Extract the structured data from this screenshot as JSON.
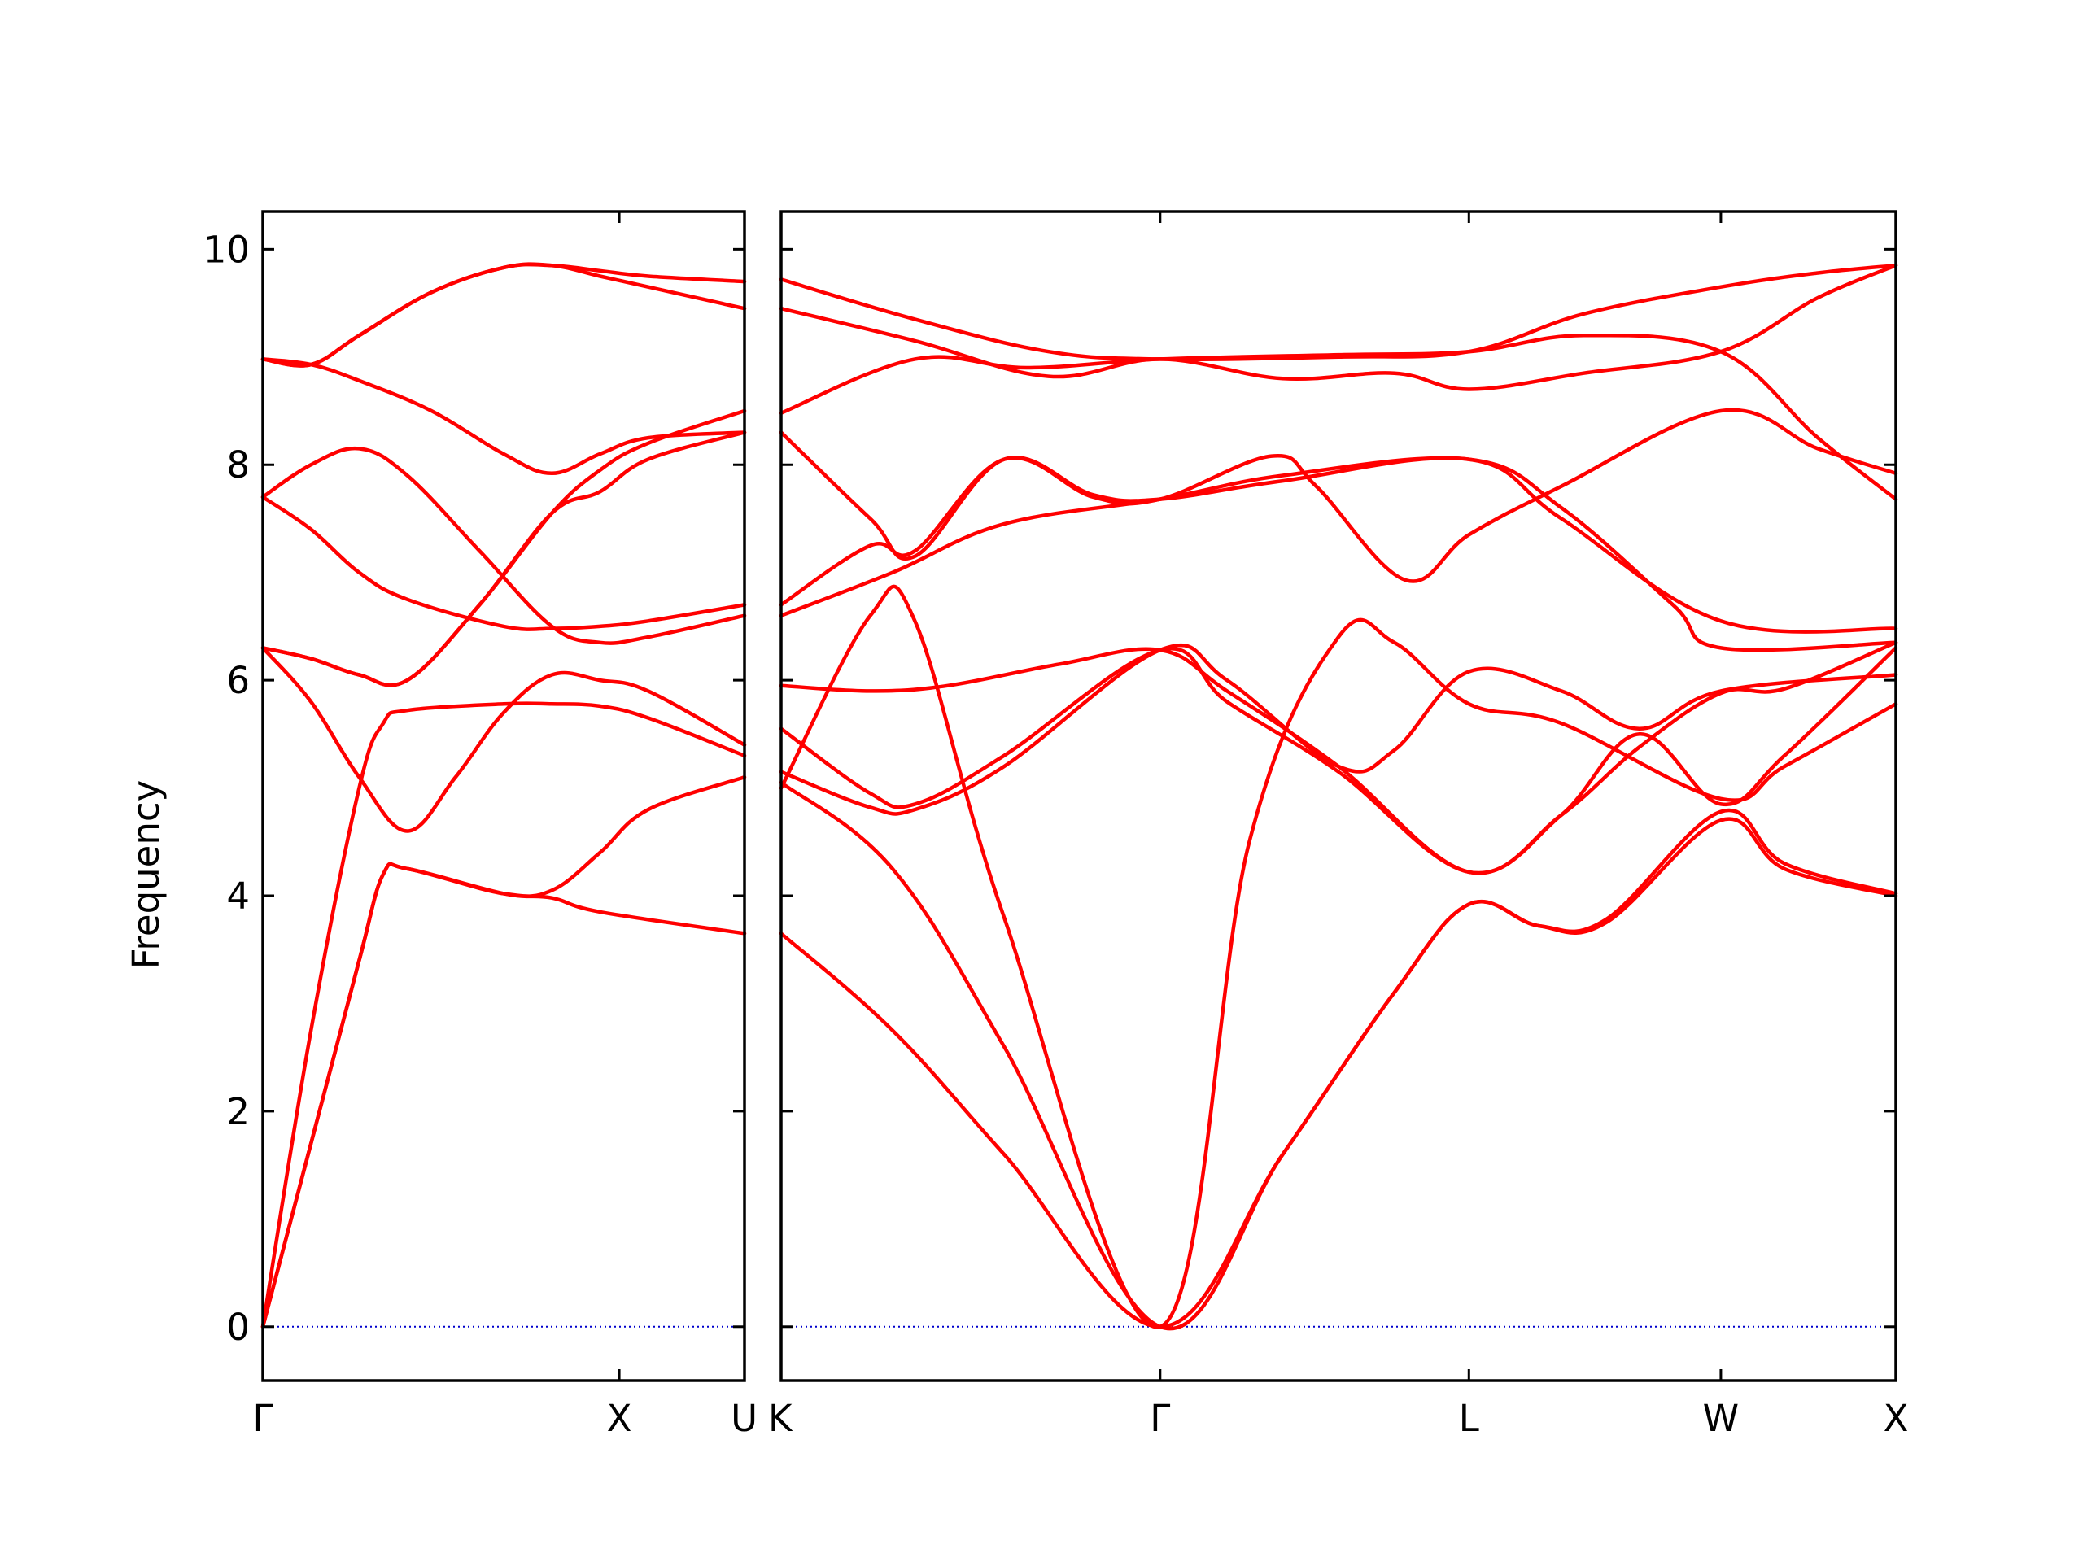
{
  "chart_data": {
    "type": "line",
    "ylabel": "Frequency",
    "ylim": [
      -0.5,
      10.35
    ],
    "yticks": [
      0,
      2,
      4,
      6,
      8,
      10
    ],
    "band_color": "#ff0000",
    "zero_line_color": "#0000cc",
    "grid": false,
    "panels": [
      {
        "x_range": [
          0,
          1.0
        ],
        "ticks": [
          {
            "x": 0,
            "label": "Γ"
          },
          {
            "x": 0.74,
            "label": "X"
          },
          {
            "x": 1.0,
            "label": "U"
          }
        ],
        "bands": [
          [
            [
              0,
              0
            ],
            [
              0.1,
              2.75
            ],
            [
              0.2,
              5.0
            ],
            [
              0.25,
              5.6
            ],
            [
              0.3,
              5.72
            ],
            [
              0.5,
              5.78
            ],
            [
              0.6,
              5.78
            ],
            [
              0.7,
              5.76
            ],
            [
              0.8,
              5.65
            ],
            [
              1.0,
              5.3
            ]
          ],
          [
            [
              0,
              0
            ],
            [
              0.1,
              1.7
            ],
            [
              0.2,
              3.4
            ],
            [
              0.25,
              4.2
            ],
            [
              0.3,
              4.25
            ],
            [
              0.5,
              4.02
            ],
            [
              0.6,
              4.05
            ],
            [
              0.7,
              4.4
            ],
            [
              0.8,
              4.8
            ],
            [
              1.0,
              5.1
            ]
          ],
          [
            [
              0,
              0
            ],
            [
              0.1,
              1.7
            ],
            [
              0.2,
              3.4
            ],
            [
              0.25,
              4.2
            ],
            [
              0.3,
              4.25
            ],
            [
              0.5,
              4.02
            ],
            [
              0.6,
              3.98
            ],
            [
              0.7,
              3.85
            ],
            [
              1.0,
              3.65
            ]
          ],
          [
            [
              0,
              6.3
            ],
            [
              0.1,
              5.8
            ],
            [
              0.2,
              5.1
            ],
            [
              0.3,
              4.6
            ],
            [
              0.4,
              5.1
            ],
            [
              0.5,
              5.7
            ],
            [
              0.6,
              6.05
            ],
            [
              0.7,
              6.0
            ],
            [
              0.8,
              5.9
            ],
            [
              1.0,
              5.4
            ]
          ],
          [
            [
              0,
              6.3
            ],
            [
              0.1,
              6.2
            ],
            [
              0.2,
              6.05
            ],
            [
              0.3,
              6.0
            ],
            [
              0.45,
              6.7
            ],
            [
              0.6,
              7.55
            ],
            [
              0.7,
              7.95
            ],
            [
              0.8,
              8.2
            ],
            [
              1.0,
              8.5
            ]
          ],
          [
            [
              0,
              6.3
            ],
            [
              0.1,
              6.2
            ],
            [
              0.2,
              6.05
            ],
            [
              0.3,
              6.0
            ],
            [
              0.45,
              6.7
            ],
            [
              0.6,
              7.55
            ],
            [
              0.7,
              7.75
            ],
            [
              0.8,
              8.05
            ],
            [
              1.0,
              8.3
            ]
          ],
          [
            [
              0,
              7.7
            ],
            [
              0.1,
              7.4
            ],
            [
              0.2,
              7.0
            ],
            [
              0.3,
              6.75
            ],
            [
              0.5,
              6.5
            ],
            [
              0.6,
              6.48
            ],
            [
              0.7,
              6.5
            ],
            [
              0.8,
              6.55
            ],
            [
              1.0,
              6.7
            ]
          ],
          [
            [
              0,
              7.7
            ],
            [
              0.1,
              8.0
            ],
            [
              0.2,
              8.15
            ],
            [
              0.3,
              7.9
            ],
            [
              0.45,
              7.2
            ],
            [
              0.6,
              6.5
            ],
            [
              0.7,
              6.35
            ],
            [
              0.8,
              6.4
            ],
            [
              1.0,
              6.6
            ]
          ],
          [
            [
              0,
              8.98
            ],
            [
              0.1,
              8.93
            ],
            [
              0.2,
              8.78
            ],
            [
              0.35,
              8.5
            ],
            [
              0.5,
              8.1
            ],
            [
              0.6,
              7.92
            ],
            [
              0.7,
              8.1
            ],
            [
              0.8,
              8.25
            ],
            [
              1.0,
              8.3
            ]
          ],
          [
            [
              0,
              8.98
            ],
            [
              0.1,
              8.93
            ],
            [
              0.2,
              9.2
            ],
            [
              0.35,
              9.6
            ],
            [
              0.5,
              9.83
            ],
            [
              0.6,
              9.85
            ],
            [
              0.7,
              9.75
            ],
            [
              0.8,
              9.65
            ],
            [
              1.0,
              9.45
            ]
          ],
          [
            [
              0,
              8.98
            ],
            [
              0.1,
              8.93
            ],
            [
              0.2,
              9.2
            ],
            [
              0.35,
              9.6
            ],
            [
              0.5,
              9.83
            ],
            [
              0.6,
              9.85
            ],
            [
              0.7,
              9.8
            ],
            [
              0.8,
              9.75
            ],
            [
              1.0,
              9.7
            ]
          ]
        ]
      },
      {
        "x_range": [
          0,
          1.0
        ],
        "ticks": [
          {
            "x": 0,
            "label": "K"
          },
          {
            "x": 0.34,
            "label": "Γ"
          },
          {
            "x": 0.617,
            "label": "L"
          },
          {
            "x": 0.843,
            "label": "W"
          },
          {
            "x": 1.0,
            "label": "X"
          }
        ],
        "bands": [
          [
            [
              0,
              3.65
            ],
            [
              0.1,
              2.75
            ],
            [
              0.2,
              1.6
            ],
            [
              0.34,
              0
            ],
            [
              0.45,
              1.6
            ],
            [
              0.55,
              3.1
            ],
            [
              0.617,
              3.92
            ],
            [
              0.68,
              3.72
            ],
            [
              0.74,
              3.75
            ],
            [
              0.843,
              4.7
            ],
            [
              0.9,
              4.25
            ],
            [
              1.0,
              4.0
            ]
          ],
          [
            [
              0,
              5.05
            ],
            [
              0.1,
              4.25
            ],
            [
              0.2,
              2.6
            ],
            [
              0.34,
              0
            ],
            [
              0.45,
              1.6
            ],
            [
              0.55,
              3.1
            ],
            [
              0.617,
              3.92
            ],
            [
              0.68,
              3.72
            ],
            [
              0.74,
              3.78
            ],
            [
              0.843,
              4.78
            ],
            [
              0.9,
              4.3
            ],
            [
              1.0,
              4.02
            ]
          ],
          [
            [
              0,
              5.0
            ],
            [
              0.08,
              6.6
            ],
            [
              0.12,
              6.55
            ],
            [
              0.2,
              3.8
            ],
            [
              0.34,
              0
            ],
            [
              0.42,
              4.5
            ],
            [
              0.5,
              6.4
            ],
            [
              0.55,
              6.35
            ],
            [
              0.617,
              5.78
            ],
            [
              0.7,
              5.6
            ],
            [
              0.843,
              4.9
            ],
            [
              0.9,
              5.2
            ],
            [
              1.0,
              5.78
            ]
          ],
          [
            [
              0,
              5.15
            ],
            [
              0.08,
              4.82
            ],
            [
              0.12,
              4.8
            ],
            [
              0.2,
              5.2
            ],
            [
              0.34,
              6.28
            ],
            [
              0.4,
              6.0
            ],
            [
              0.5,
              5.2
            ],
            [
              0.55,
              5.35
            ],
            [
              0.617,
              6.08
            ],
            [
              0.7,
              5.9
            ],
            [
              0.77,
              5.55
            ],
            [
              0.843,
              5.9
            ],
            [
              1.0,
              6.05
            ]
          ],
          [
            [
              0,
              5.55
            ],
            [
              0.08,
              4.95
            ],
            [
              0.12,
              4.85
            ],
            [
              0.2,
              5.3
            ],
            [
              0.34,
              6.28
            ],
            [
              0.4,
              5.8
            ],
            [
              0.5,
              5.15
            ],
            [
              0.617,
              4.22
            ],
            [
              0.7,
              4.75
            ],
            [
              0.77,
              5.5
            ],
            [
              0.843,
              4.85
            ],
            [
              0.9,
              5.3
            ],
            [
              1.0,
              6.3
            ]
          ],
          [
            [
              0,
              5.95
            ],
            [
              0.08,
              5.9
            ],
            [
              0.15,
              5.95
            ],
            [
              0.25,
              6.15
            ],
            [
              0.34,
              6.28
            ],
            [
              0.4,
              5.9
            ],
            [
              0.5,
              5.2
            ],
            [
              0.617,
              4.22
            ],
            [
              0.7,
              4.75
            ],
            [
              0.77,
              5.38
            ],
            [
              0.843,
              5.88
            ],
            [
              0.9,
              5.92
            ],
            [
              1.0,
              6.35
            ]
          ],
          [
            [
              0,
              6.6
            ],
            [
              0.1,
              7.0
            ],
            [
              0.2,
              7.45
            ],
            [
              0.34,
              7.68
            ],
            [
              0.45,
              7.9
            ],
            [
              0.617,
              8.05
            ],
            [
              0.7,
              7.6
            ],
            [
              0.8,
              6.7
            ],
            [
              0.843,
              6.3
            ],
            [
              1.0,
              6.35
            ]
          ],
          [
            [
              0,
              6.7
            ],
            [
              0.08,
              7.25
            ],
            [
              0.12,
              7.2
            ],
            [
              0.2,
              8.05
            ],
            [
              0.28,
              7.7
            ],
            [
              0.34,
              7.68
            ],
            [
              0.44,
              8.08
            ],
            [
              0.48,
              7.8
            ],
            [
              0.56,
              6.93
            ],
            [
              0.617,
              7.35
            ],
            [
              0.7,
              7.8
            ],
            [
              0.843,
              8.5
            ],
            [
              0.93,
              8.15
            ],
            [
              1.0,
              7.92
            ]
          ],
          [
            [
              0,
              8.3
            ],
            [
              0.08,
              7.5
            ],
            [
              0.12,
              7.15
            ],
            [
              0.2,
              8.05
            ],
            [
              0.28,
              7.72
            ],
            [
              0.34,
              7.68
            ],
            [
              0.45,
              7.85
            ],
            [
              0.617,
              8.05
            ],
            [
              0.7,
              7.5
            ],
            [
              0.843,
              6.55
            ],
            [
              1.0,
              6.48
            ]
          ],
          [
            [
              0,
              8.48
            ],
            [
              0.12,
              8.98
            ],
            [
              0.22,
              8.9
            ],
            [
              0.34,
              8.98
            ],
            [
              0.5,
              9.02
            ],
            [
              0.617,
              9.05
            ],
            [
              0.72,
              9.2
            ],
            [
              0.843,
              9.05
            ],
            [
              0.93,
              8.25
            ],
            [
              1.0,
              7.68
            ]
          ],
          [
            [
              0,
              9.45
            ],
            [
              0.12,
              9.15
            ],
            [
              0.24,
              8.82
            ],
            [
              0.34,
              8.98
            ],
            [
              0.45,
              8.8
            ],
            [
              0.55,
              8.85
            ],
            [
              0.617,
              8.7
            ],
            [
              0.72,
              8.85
            ],
            [
              0.843,
              9.05
            ],
            [
              0.93,
              9.55
            ],
            [
              1.0,
              9.85
            ]
          ],
          [
            [
              0,
              9.72
            ],
            [
              0.12,
              9.35
            ],
            [
              0.24,
              9.05
            ],
            [
              0.34,
              8.98
            ],
            [
              0.5,
              9.0
            ],
            [
              0.617,
              9.05
            ],
            [
              0.72,
              9.4
            ],
            [
              0.843,
              9.65
            ],
            [
              0.93,
              9.78
            ],
            [
              1.0,
              9.85
            ]
          ]
        ]
      }
    ]
  }
}
